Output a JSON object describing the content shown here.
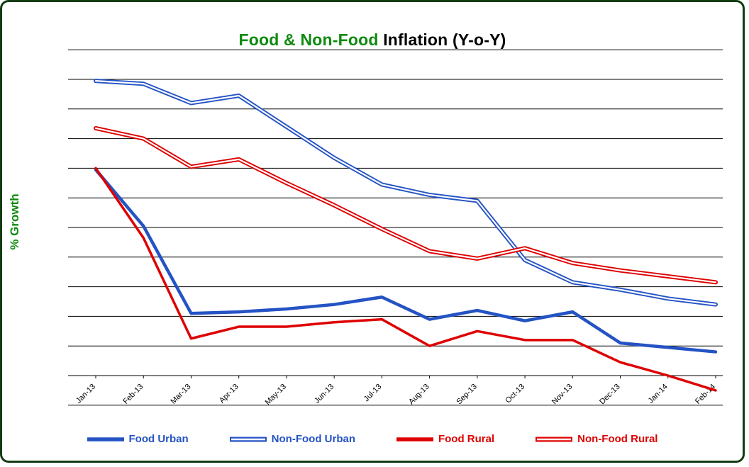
{
  "title": {
    "green": "Food & Non-Food",
    "black": " Inflation (Y-o-Y)"
  },
  "colors": {
    "title_green": "#0e8a0e",
    "border_green": "#123b12",
    "series_blue": "#2453c4",
    "series_red": "#de0000",
    "gridline": "#000000"
  },
  "chart_data": {
    "type": "line",
    "title": "Food & Non-Food Inflation (Y-o-Y)",
    "xlabel": "",
    "ylabel": "% Growth",
    "ylim": [
      -2,
      22
    ],
    "grid_step": 2,
    "grid": true,
    "legend_position": "bottom",
    "x": [
      "Jan-13",
      "Feb-13",
      "Mar-13",
      "Apr-13",
      "May-13",
      "Jun-13",
      "Jul-13",
      "Aug-13",
      "Sep-13",
      "Oct-13",
      "Nov-13",
      "Dec-13",
      "Jan-14",
      "Feb-14"
    ],
    "series": [
      {
        "name": "Food Urban",
        "color": "#2453c4",
        "style": "solid",
        "width": 4.5,
        "values": [
          13.9,
          10.1,
          4.2,
          4.3,
          4.5,
          4.8,
          5.3,
          3.8,
          4.4,
          3.7,
          4.3,
          2.2,
          1.9,
          1.6
        ]
      },
      {
        "name": "Non-Food Urban",
        "color": "#2453c4",
        "style": "double",
        "width": 6,
        "values": [
          19.9,
          19.7,
          18.4,
          18.9,
          16.8,
          14.7,
          12.9,
          12.2,
          11.8,
          7.8,
          6.3,
          5.8,
          5.2,
          4.8
        ]
      },
      {
        "name": "Food Rural",
        "color": "#de0000",
        "style": "solid",
        "width": 3.5,
        "values": [
          14.0,
          9.3,
          2.5,
          3.3,
          3.3,
          3.6,
          3.8,
          2.0,
          3.0,
          2.4,
          2.4,
          0.9,
          0.0,
          -1.0
        ]
      },
      {
        "name": "Non-Food Rural",
        "color": "#de0000",
        "style": "double",
        "width": 6,
        "values": [
          16.7,
          16.0,
          14.1,
          14.6,
          13.0,
          11.5,
          9.9,
          8.4,
          7.9,
          8.6,
          7.6,
          7.1,
          6.7,
          6.3
        ]
      }
    ]
  }
}
